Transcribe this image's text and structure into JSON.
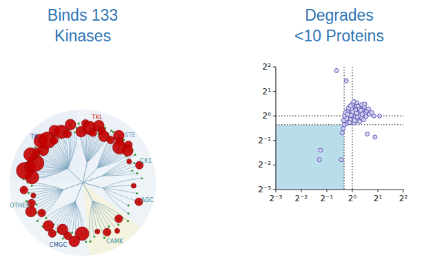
{
  "chart_data": [
    {
      "type": "kinome_tree",
      "title": [
        "Binds 133",
        "Kinases"
      ],
      "groups": [
        {
          "name": "TK",
          "color": "#2b4f8e",
          "hits": [
            4,
            5,
            3,
            5,
            4,
            2,
            3,
            4,
            5,
            2,
            3,
            4,
            2,
            3
          ]
        },
        {
          "name": "TKL",
          "color": "#c0302b",
          "hits": [
            3,
            2,
            4,
            2,
            3,
            2,
            3
          ]
        },
        {
          "name": "STE",
          "color": "#6a9fcf",
          "hits": [
            2,
            3,
            2,
            4,
            2,
            3
          ]
        },
        {
          "name": "CK1",
          "color": "#3f8f9a",
          "hits": [
            1,
            2
          ]
        },
        {
          "name": "AGC",
          "color": "#3f8f9a",
          "hits": [
            1,
            2
          ]
        },
        {
          "name": "CAMK",
          "color": "#3f8f9a",
          "hits": [
            2,
            1,
            2,
            1
          ]
        },
        {
          "name": "CMGC",
          "color": "#2b4f8e",
          "hits": [
            4,
            3,
            2,
            3,
            2,
            3
          ]
        },
        {
          "name": "OTHER",
          "color": "#3f8f9a",
          "hits": [
            2,
            3,
            2,
            1,
            2
          ]
        }
      ]
    },
    {
      "type": "scatter",
      "title": [
        "Degrades",
        "<10 Proteins"
      ],
      "log": true,
      "color": "#5a55b5",
      "marker": "circle",
      "xlim": [
        0.125,
        4
      ],
      "ylim": [
        0.125,
        4
      ],
      "xticks": [
        {
          "value": 0.125,
          "label": "2⁻³"
        },
        {
          "value": 0.25,
          "label": "2⁻²"
        },
        {
          "value": 0.5,
          "label": "2⁻¹"
        },
        {
          "value": 1,
          "label": "2⁰"
        },
        {
          "value": 2,
          "label": "2¹"
        },
        {
          "value": 4,
          "label": "2²"
        }
      ],
      "yticks": [
        {
          "value": 0.125,
          "label": "2⁻³"
        },
        {
          "value": 0.25,
          "label": "2⁻²"
        },
        {
          "value": 0.5,
          "label": "2⁻¹"
        },
        {
          "value": 1,
          "label": "2⁰"
        },
        {
          "value": 2,
          "label": "2¹"
        },
        {
          "value": 4,
          "label": "2²"
        }
      ],
      "x_lines": [
        0.8,
        1
      ],
      "y_lines": [
        0.78,
        1
      ],
      "shaded_region": {
        "x": [
          0.125,
          0.8
        ],
        "y": [
          0.125,
          0.78
        ]
      },
      "x": [
        1.02,
        0.95,
        1.1,
        1.05,
        0.9,
        1.18,
        0.98,
        1.22,
        0.86,
        1.08,
        1.3,
        0.93,
        1.01,
        1.14,
        0.88,
        1.25,
        1.04,
        0.97,
        1.35,
        0.82,
        1.12,
        1.0,
        0.92,
        1.2,
        1.06,
        1.42,
        0.85,
        1.16,
        0.99,
        1.28,
        0.94,
        1.09,
        1.03,
        1.24,
        0.89,
        1.15,
        1.07,
        0.96,
        1.32,
        0.84,
        1.48,
        1.11,
        0.91,
        1.19,
        1.0,
        1.38,
        0.87,
        1.05,
        1.27,
        0.95,
        1.13,
        1.6,
        0.81,
        1.22,
        1.02,
        0.98,
        1.45,
        1.17,
        0.9,
        1.08,
        1.55,
        0.93,
        1.29,
        1.01,
        0.86,
        1.36,
        1.1,
        0.97,
        1.21,
        1.04,
        0.83,
        1.31,
        1.14,
        0.95,
        1.4,
        1.06,
        0.88,
        1.26,
        1.7,
        1.12,
        1.8,
        1.85,
        0.42,
        0.41,
        0.74,
        0.76,
        0.78,
        0.65,
        0.85,
        1.5,
        0.8,
        0.79,
        2.1
      ],
      "values": [
        1.0,
        1.05,
        0.98,
        1.12,
        0.92,
        1.06,
        0.88,
        1.15,
        1.02,
        1.25,
        1.0,
        1.18,
        0.84,
        0.93,
        0.85,
        1.28,
        1.08,
        0.96,
        1.12,
        0.95,
        1.35,
        1.2,
        1.1,
        0.9,
        0.95,
        1.08,
        0.8,
        1.2,
        1.3,
        0.95,
        0.99,
        1.03,
        0.91,
        1.04,
        1.08,
        1.1,
        1.16,
        1.14,
        1.2,
        0.88,
        1.15,
        0.86,
        0.98,
        1.0,
        1.4,
        1.3,
        1.15,
        0.82,
        1.1,
        0.9,
        1.45,
        1.05,
        1.0,
        0.85,
        1.06,
        1.22,
        0.98,
        1.32,
        1.25,
        0.97,
        1.22,
        0.83,
        1.38,
        1.12,
        0.93,
        0.9,
        1.18,
        1.02,
        1.22,
        1.5,
        1.1,
        1.05,
        0.97,
        1.33,
        1.4,
        0.88,
        1.05,
        1.17,
        1.1,
        1.08,
        1.0,
        0.55,
        0.38,
        0.29,
        0.29,
        0.62,
        0.7,
        3.6,
        2.7,
        0.6,
        0.78,
        0.88,
        1.0
      ]
    }
  ]
}
